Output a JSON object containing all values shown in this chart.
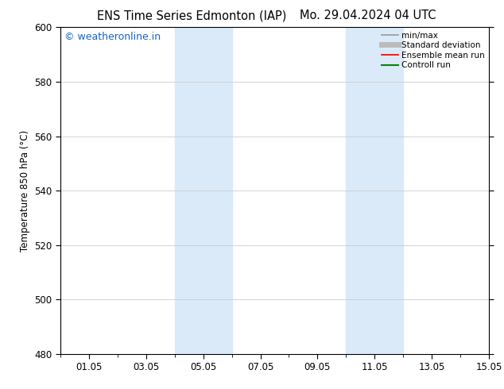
{
  "title_left": "ENS Time Series Edmonton (IAP)",
  "title_right": "Mo. 29.04.2024 04 UTC",
  "ylabel": "Temperature 850 hPa (°C)",
  "xlim": [
    0.0,
    15.0
  ],
  "ylim": [
    480,
    600
  ],
  "yticks": [
    480,
    500,
    520,
    540,
    560,
    580,
    600
  ],
  "xtick_positions": [
    1,
    3,
    5,
    7,
    9,
    11,
    13,
    15
  ],
  "xtick_labels": [
    "01.05",
    "03.05",
    "05.05",
    "07.05",
    "09.05",
    "11.05",
    "13.05",
    "15.05"
  ],
  "minor_xtick_positions": [
    0,
    2,
    4,
    6,
    8,
    10,
    12,
    14
  ],
  "watermark": "© weatheronline.in",
  "watermark_color": "#1565c0",
  "background_color": "#ffffff",
  "shade_regions": [
    {
      "xmin": 4.0,
      "xmax": 6.0
    },
    {
      "xmin": 10.0,
      "xmax": 12.0
    }
  ],
  "shade_color": "#daeaf8",
  "legend_items": [
    {
      "label": "min/max",
      "color": "#999999",
      "lw": 1.2
    },
    {
      "label": "Standard deviation",
      "color": "#bbbbbb",
      "lw": 5
    },
    {
      "label": "Ensemble mean run",
      "color": "#dd0000",
      "lw": 1.2
    },
    {
      "label": "Controll run",
      "color": "#008800",
      "lw": 1.5
    }
  ],
  "title_fontsize": 10.5,
  "tick_fontsize": 8.5,
  "legend_fontsize": 7.5,
  "ylabel_fontsize": 8.5,
  "watermark_fontsize": 9
}
